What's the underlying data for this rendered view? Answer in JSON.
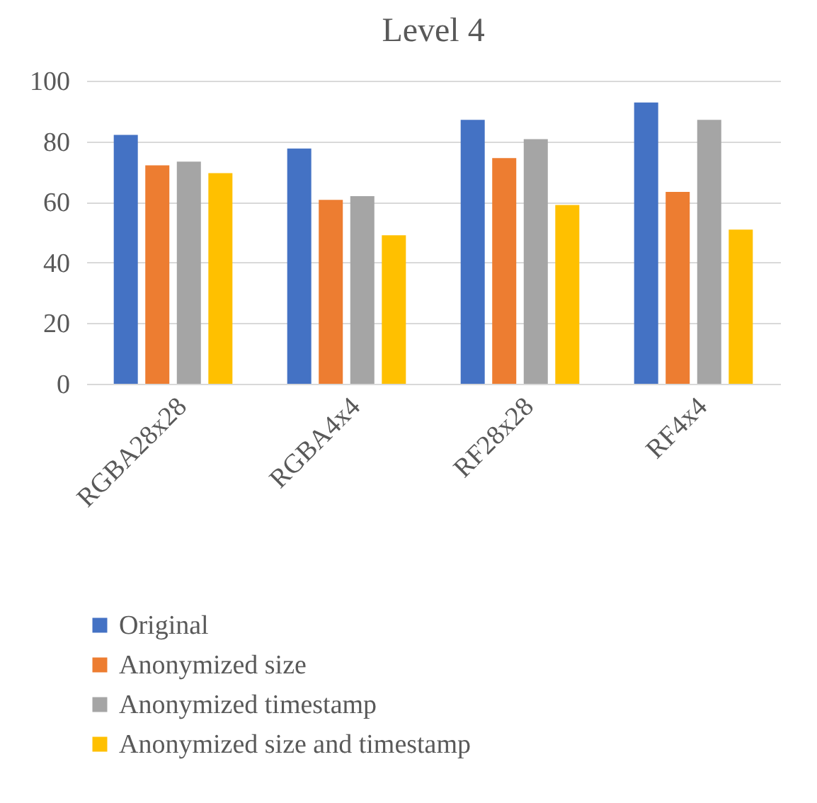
{
  "chart_data": {
    "type": "bar",
    "title": "Level 4",
    "categories": [
      "RGBA28x28",
      "RGBA4x4",
      "RF28x28",
      "RF4x4"
    ],
    "series": [
      {
        "name": "Original",
        "color": "#4472c4",
        "values": [
          82.1,
          77.6,
          87.1,
          92.8
        ]
      },
      {
        "name": "Anonymized size",
        "color": "#ed7d31",
        "values": [
          72.1,
          60.7,
          74.5,
          63.3
        ]
      },
      {
        "name": "Anonymized timestamp",
        "color": "#a5a5a5",
        "values": [
          73.3,
          61.9,
          80.7,
          87.1
        ]
      },
      {
        "name": "Anonymized size and timestamp",
        "color": "#ffc000",
        "values": [
          69.5,
          49.0,
          59.0,
          50.9
        ]
      }
    ],
    "ylim": [
      0,
      100
    ],
    "yticks": [
      0,
      20,
      40,
      60,
      80,
      100
    ],
    "grid": "y",
    "legend": "bottom"
  }
}
